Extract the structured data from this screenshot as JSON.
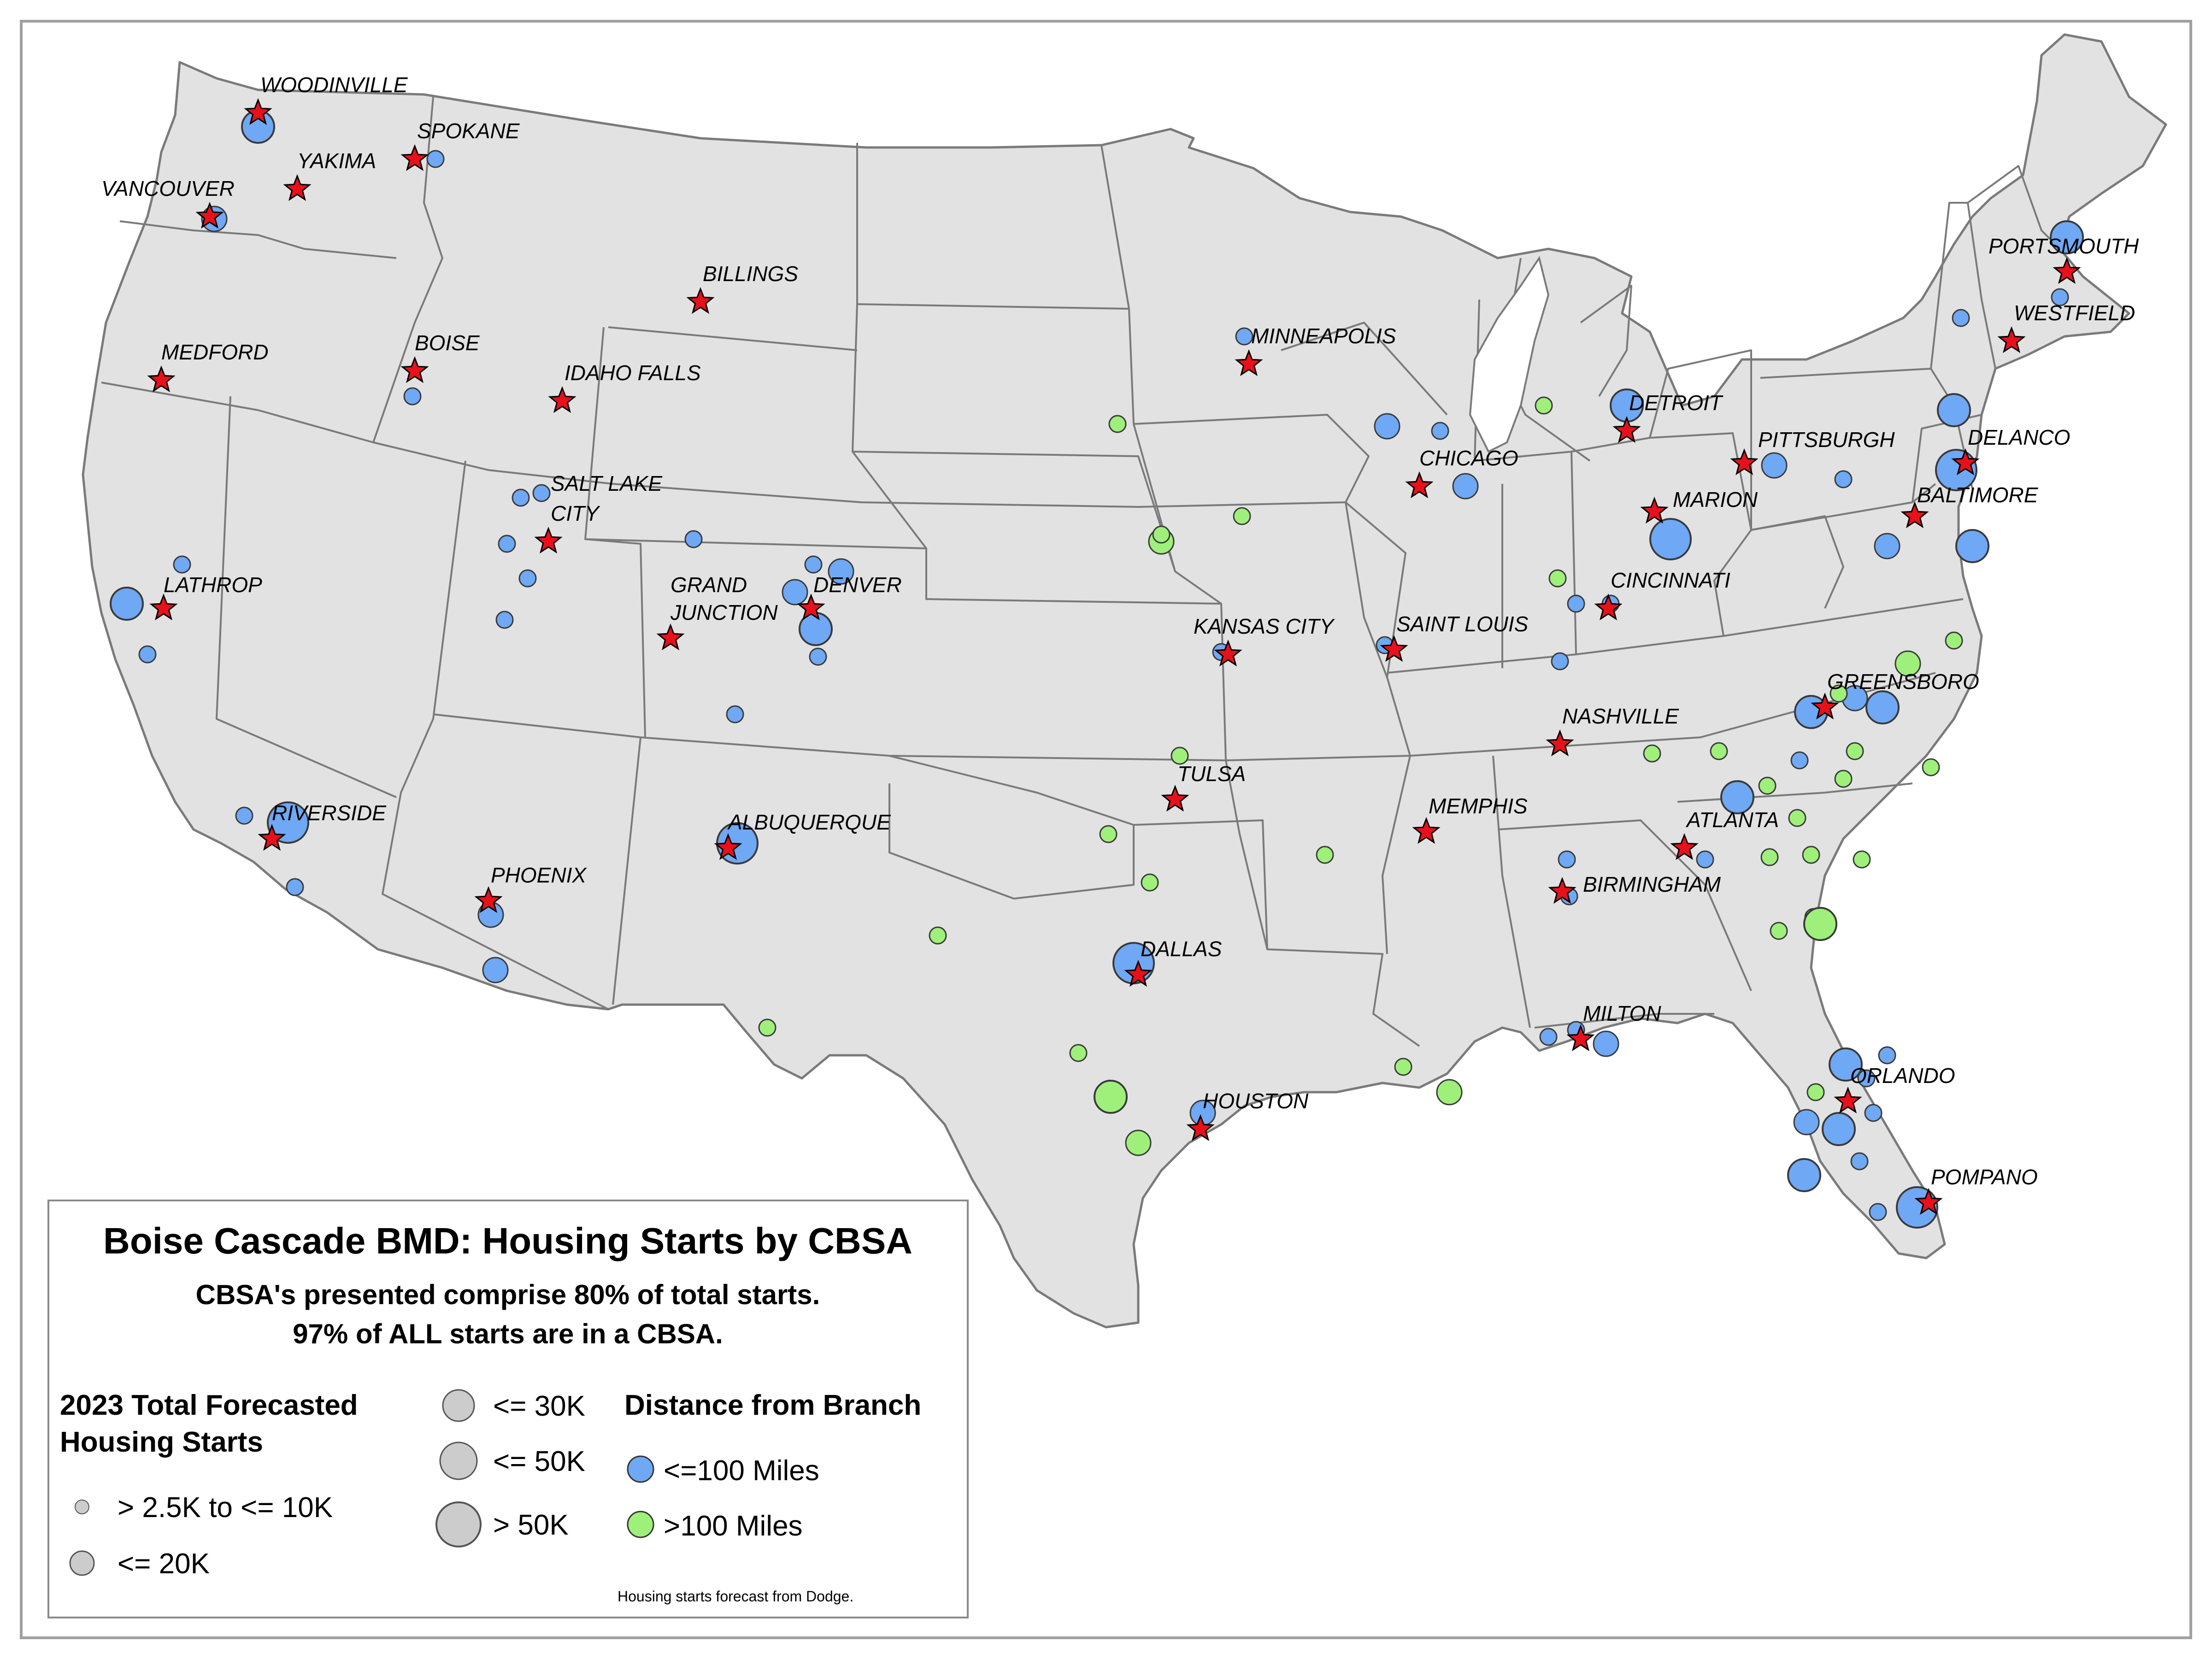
{
  "map": {
    "title": "Boise Cascade BMD:  Housing Starts by CBSA",
    "subtitle_line1": "CBSA's presented comprise 80% of total starts.",
    "subtitle_line2": "97% of ALL starts are in a CBSA.",
    "legend": {
      "size_heading_line1": "2023 Total Forecasted",
      "size_heading_line2": "Housing Starts",
      "size_classes": [
        {
          "label": "> 2.5K to <= 10K"
        },
        {
          "label": "<= 20K"
        },
        {
          "label": "<= 30K"
        },
        {
          "label": "<= 50K"
        },
        {
          "label": "> 50K"
        }
      ],
      "distance_heading": "Distance from Branch",
      "distance_classes": [
        {
          "label": "<=100 Miles",
          "color": "#6fa8f4"
        },
        {
          "label": ">100 Miles",
          "color": "#9ef07a"
        }
      ],
      "source_note": "Housing starts forecast from Dodge."
    },
    "colors": {
      "land": "#e2e2e2",
      "border": "#7a7a7a",
      "branch_star": "#e8101a",
      "near": "#6fa8f4",
      "far": "#9ef07a"
    },
    "branches": [
      {
        "name": "WOODINVILLE"
      },
      {
        "name": "SPOKANE"
      },
      {
        "name": "YAKIMA"
      },
      {
        "name": "VANCOUVER"
      },
      {
        "name": "BILLINGS"
      },
      {
        "name": "MEDFORD"
      },
      {
        "name": "BOISE"
      },
      {
        "name": "IDAHO FALLS"
      },
      {
        "name": "SALT LAKE"
      },
      {
        "name": "CITY"
      },
      {
        "name": "LATHROP"
      },
      {
        "name": "GRAND"
      },
      {
        "name": "JUNCTION"
      },
      {
        "name": "DENVER"
      },
      {
        "name": "RIVERSIDE"
      },
      {
        "name": "ALBUQUERQUE"
      },
      {
        "name": "PHOENIX"
      },
      {
        "name": "MINNEAPOLIS"
      },
      {
        "name": "KANSAS CITY"
      },
      {
        "name": "TULSA"
      },
      {
        "name": "DALLAS"
      },
      {
        "name": "HOUSTON"
      },
      {
        "name": "CHICAGO"
      },
      {
        "name": "SAINT LOUIS"
      },
      {
        "name": "DETROIT"
      },
      {
        "name": "MARION"
      },
      {
        "name": "CINCINNATI"
      },
      {
        "name": "NASHVILLE"
      },
      {
        "name": "MEMPHIS"
      },
      {
        "name": "BIRMINGHAM"
      },
      {
        "name": "ATLANTA"
      },
      {
        "name": "MILTON"
      },
      {
        "name": "PITTSBURGH"
      },
      {
        "name": "DELANCO"
      },
      {
        "name": "BALTIMORE"
      },
      {
        "name": "GREENSBORO"
      },
      {
        "name": "ORLANDO"
      },
      {
        "name": "POMPANO"
      },
      {
        "name": "PORTSMOUTH"
      },
      {
        "name": "WESTFIELD"
      }
    ],
    "cbsa_circles": [
      {
        "size_class": 3,
        "distance": "near"
      },
      {
        "size_class": 1,
        "distance": "near"
      },
      {
        "size_class": 2,
        "distance": "near"
      },
      {
        "size_class": 1,
        "distance": "near"
      },
      {
        "size_class": 1,
        "distance": "near"
      },
      {
        "size_class": 1,
        "distance": "near"
      },
      {
        "size_class": 1,
        "distance": "near"
      },
      {
        "size_class": 1,
        "distance": "near"
      },
      {
        "size_class": 2,
        "distance": "near"
      },
      {
        "size_class": 2,
        "distance": "near"
      },
      {
        "size_class": 1,
        "distance": "near"
      },
      {
        "size_class": 3,
        "distance": "near"
      },
      {
        "size_class": 1,
        "distance": "near"
      },
      {
        "size_class": 1,
        "distance": "near"
      },
      {
        "size_class": 1,
        "distance": "near"
      },
      {
        "size_class": 1,
        "distance": "near"
      },
      {
        "size_class": 3,
        "distance": "near"
      },
      {
        "size_class": 1,
        "distance": "near"
      },
      {
        "size_class": 1,
        "distance": "near"
      },
      {
        "size_class": 4,
        "distance": "near"
      },
      {
        "size_class": 1,
        "distance": "near"
      },
      {
        "size_class": 2,
        "distance": "near"
      },
      {
        "size_class": 2,
        "distance": "near"
      },
      {
        "size_class": 1,
        "distance": "near"
      },
      {
        "size_class": 4,
        "distance": "near"
      },
      {
        "size_class": 4,
        "distance": "near"
      },
      {
        "size_class": 2,
        "distance": "near"
      },
      {
        "size_class": 1,
        "distance": "near"
      },
      {
        "size_class": 1,
        "distance": "near"
      },
      {
        "size_class": 2,
        "distance": "near"
      },
      {
        "size_class": 1,
        "distance": "near"
      },
      {
        "size_class": 2,
        "distance": "near"
      },
      {
        "size_class": 1,
        "distance": "near"
      },
      {
        "size_class": 1,
        "distance": "near"
      },
      {
        "size_class": 1,
        "distance": "near"
      },
      {
        "size_class": 3,
        "distance": "near"
      },
      {
        "size_class": 1,
        "distance": "near"
      },
      {
        "size_class": 4,
        "distance": "near"
      },
      {
        "size_class": 2,
        "distance": "near"
      },
      {
        "size_class": 1,
        "distance": "near"
      },
      {
        "size_class": 1,
        "distance": "near"
      },
      {
        "size_class": 1,
        "distance": "near"
      },
      {
        "size_class": 1,
        "distance": "near"
      },
      {
        "size_class": 1,
        "distance": "near"
      },
      {
        "size_class": 2,
        "distance": "near"
      },
      {
        "size_class": 3,
        "distance": "near"
      },
      {
        "size_class": 2,
        "distance": "near"
      },
      {
        "size_class": 3,
        "distance": "near"
      },
      {
        "size_class": 1,
        "distance": "near"
      },
      {
        "size_class": 3,
        "distance": "near"
      },
      {
        "size_class": 1,
        "distance": "near"
      },
      {
        "size_class": 4,
        "distance": "near"
      },
      {
        "size_class": 3,
        "distance": "near"
      },
      {
        "size_class": 3,
        "distance": "near"
      },
      {
        "size_class": 1,
        "distance": "near"
      },
      {
        "size_class": 1,
        "distance": "near"
      },
      {
        "size_class": 2,
        "distance": "near"
      },
      {
        "size_class": 3,
        "distance": "near"
      },
      {
        "size_class": 3,
        "distance": "near"
      },
      {
        "size_class": 1,
        "distance": "near"
      },
      {
        "size_class": 1,
        "distance": "near"
      },
      {
        "size_class": 2,
        "distance": "near"
      },
      {
        "size_class": 3,
        "distance": "near"
      },
      {
        "size_class": 1,
        "distance": "near"
      },
      {
        "size_class": 3,
        "distance": "near"
      },
      {
        "size_class": 1,
        "distance": "near"
      },
      {
        "size_class": 1,
        "distance": "near"
      },
      {
        "size_class": 4,
        "distance": "near"
      },
      {
        "size_class": 1,
        "distance": "far"
      },
      {
        "size_class": 2,
        "distance": "far"
      },
      {
        "size_class": 1,
        "distance": "far"
      },
      {
        "size_class": 1,
        "distance": "far"
      },
      {
        "size_class": 1,
        "distance": "far"
      },
      {
        "size_class": 1,
        "distance": "far"
      },
      {
        "size_class": 1,
        "distance": "far"
      },
      {
        "size_class": 3,
        "distance": "far"
      },
      {
        "size_class": 2,
        "distance": "far"
      },
      {
        "size_class": 1,
        "distance": "far"
      },
      {
        "size_class": 1,
        "distance": "far"
      },
      {
        "size_class": 1,
        "distance": "far"
      },
      {
        "size_class": 1,
        "distance": "far"
      },
      {
        "size_class": 1,
        "distance": "far"
      },
      {
        "size_class": 2,
        "distance": "far"
      },
      {
        "size_class": 1,
        "distance": "far"
      },
      {
        "size_class": 1,
        "distance": "far"
      },
      {
        "size_class": 1,
        "distance": "far"
      },
      {
        "size_class": 1,
        "distance": "far"
      },
      {
        "size_class": 1,
        "distance": "far"
      },
      {
        "size_class": 1,
        "distance": "far"
      },
      {
        "size_class": 1,
        "distance": "far"
      },
      {
        "size_class": 1,
        "distance": "far"
      },
      {
        "size_class": 1,
        "distance": "far"
      },
      {
        "size_class": 1,
        "distance": "far"
      },
      {
        "size_class": 1,
        "distance": "far"
      },
      {
        "size_class": 1,
        "distance": "far"
      },
      {
        "size_class": 1,
        "distance": "far"
      },
      {
        "size_class": 1,
        "distance": "far"
      },
      {
        "size_class": 3,
        "distance": "far"
      },
      {
        "size_class": 1,
        "distance": "far"
      },
      {
        "size_class": 1,
        "distance": "far"
      },
      {
        "size_class": 2,
        "distance": "far"
      },
      {
        "size_class": 1,
        "distance": "far"
      }
    ]
  }
}
